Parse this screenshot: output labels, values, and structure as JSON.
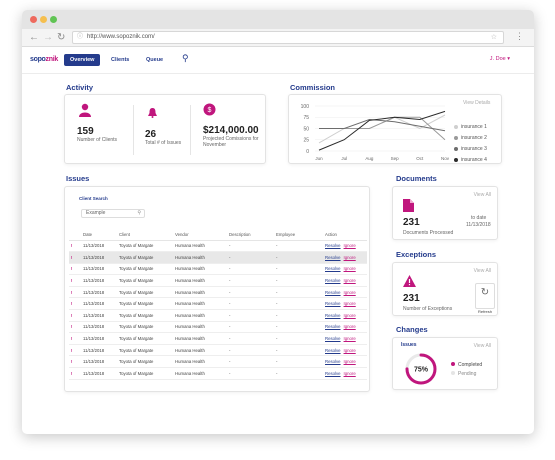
{
  "browser": {
    "url": "http://www.sopoznik.com/",
    "dots": [
      "#ee6a5e",
      "#f5bf4f",
      "#61c454"
    ]
  },
  "app": {
    "logo_main": "sopo",
    "logo_accent": "znik",
    "nav": [
      "Overview",
      "Clients",
      "Queue"
    ],
    "user": "J. Doe"
  },
  "activity": {
    "title": "Activity",
    "clients_value": "159",
    "clients_label": "Number of Clients",
    "issues_value": "26",
    "issues_label": "Total # of Issues",
    "commission_value": "$214,000.00",
    "commission_label": "Projected Comissions for November"
  },
  "commission": {
    "title": "Commission",
    "view_details": "View Details"
  },
  "chart_data": {
    "type": "line",
    "x": [
      "Jun",
      "Jul",
      "Aug",
      "Sep",
      "Oct",
      "Nov"
    ],
    "ylim": [
      0,
      100
    ],
    "yticks": [
      "100",
      "75",
      "50",
      "25",
      "0"
    ],
    "series": [
      {
        "name": "insurance 1",
        "color": "#cfcfcf",
        "values": [
          18,
          50,
          50,
          75,
          50,
          80
        ]
      },
      {
        "name": "insurance 2",
        "color": "#9a9a9a",
        "values": [
          50,
          50,
          50,
          75,
          75,
          25
        ]
      },
      {
        "name": "insurance 3",
        "color": "#6d6d6d",
        "values": [
          50,
          50,
          70,
          65,
          55,
          45
        ]
      },
      {
        "name": "insurance 4",
        "color": "#2b2b2b",
        "values": [
          2,
          25,
          68,
          75,
          70,
          88
        ]
      }
    ]
  },
  "issues": {
    "title": "Issues",
    "search_label": "Client Search",
    "search_value": "Example",
    "columns": [
      "Date",
      "Client",
      "Vendor",
      "Description",
      "Employee",
      "Action"
    ],
    "row": {
      "flag": "!",
      "date": "11/13/2018",
      "client": "Toyota of Margate",
      "vendor": "Humana Health",
      "description": "-",
      "employee": "-",
      "resolve": "Resolve",
      "ignore": "Ignore"
    },
    "row_count": 12
  },
  "documents": {
    "title": "Documents",
    "view_all": "View All",
    "value": "231",
    "label": "Documents Processed",
    "to_date_label": "to date",
    "to_date": "11/13/2018"
  },
  "exceptions": {
    "title": "Exceptions",
    "view_all": "View All",
    "value": "231",
    "label": "Number of Exceptions",
    "refresh": "Refresh"
  },
  "changes": {
    "title": "Changes",
    "subtitle": "Issues",
    "view_all": "View All",
    "percent_label": "75%",
    "percent": 75,
    "completed": "Completed",
    "pending": "Pending"
  }
}
